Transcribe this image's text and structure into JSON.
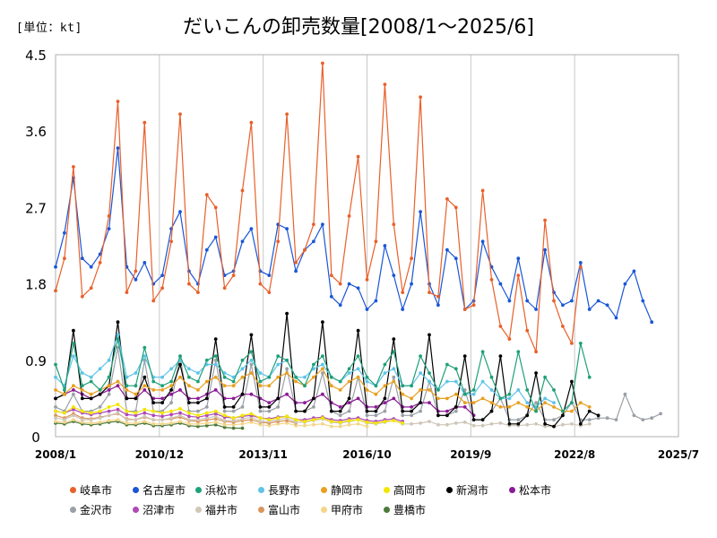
{
  "unit_label": "[単位：kt]",
  "chart_data": {
    "type": "line",
    "title": "だいこんの卸売数量[2008/1～2025/6]",
    "xlabel": "",
    "ylabel": "",
    "ylim": [
      0,
      4.5
    ],
    "yticks": [
      "0",
      "0.9",
      "1.8",
      "2.7",
      "3.6",
      "4.5"
    ],
    "xlim": [
      "2008-01",
      "2025-07"
    ],
    "xticks": [
      "2008/1",
      "2010/12",
      "2013/11",
      "2016/10",
      "2019/9",
      "2022/8",
      "2025/7"
    ],
    "grid": "vertical",
    "legend_position": "bottom",
    "sampling": "monthly, quarterly points listed; values estimated from gridlines",
    "series": [
      {
        "name": "岐阜市",
        "color": "#e8602a",
        "start": "2008-01",
        "values": [
          1.72,
          2.1,
          3.18,
          1.65,
          1.75,
          2.05,
          2.6,
          3.95,
          1.7,
          1.95,
          3.7,
          1.6,
          1.75,
          2.3,
          3.8,
          1.8,
          1.7,
          2.85,
          2.7,
          1.75,
          1.9,
          2.9,
          3.7,
          1.8,
          1.7,
          2.3,
          3.8,
          2.05,
          2.2,
          2.5,
          4.4,
          1.9,
          1.8,
          2.6,
          3.3,
          1.85,
          2.3,
          4.15,
          2.5,
          1.7,
          2.1,
          4.0,
          1.7,
          1.65,
          2.8,
          2.7,
          1.5,
          1.55,
          2.9,
          1.85,
          1.3,
          1.15,
          1.9,
          1.25,
          1.0,
          2.55,
          1.6,
          1.3,
          1.1,
          2.0
        ]
      },
      {
        "name": "名古屋市",
        "color": "#1a56d6",
        "start": "2008-01",
        "values": [
          2.0,
          2.4,
          3.05,
          2.1,
          2.0,
          2.15,
          2.45,
          3.4,
          2.0,
          1.85,
          2.05,
          1.8,
          1.9,
          2.45,
          2.65,
          1.95,
          1.8,
          2.2,
          2.35,
          1.9,
          1.95,
          2.3,
          2.45,
          1.95,
          1.9,
          2.5,
          2.45,
          1.95,
          2.2,
          2.3,
          2.5,
          1.65,
          1.55,
          1.8,
          1.75,
          1.5,
          1.6,
          2.25,
          1.9,
          1.5,
          1.8,
          2.65,
          1.8,
          1.55,
          2.2,
          2.1,
          1.5,
          1.6,
          2.3,
          2.0,
          1.8,
          1.6,
          2.1,
          1.6,
          1.5,
          2.2,
          1.7,
          1.55,
          1.6,
          2.05,
          1.5,
          1.6,
          1.55,
          1.4,
          1.8,
          1.95,
          1.6,
          1.35
        ]
      },
      {
        "name": "浜松市",
        "color": "#1fa07a",
        "start": "2008-01",
        "values": [
          0.85,
          0.55,
          1.1,
          0.6,
          0.65,
          0.55,
          0.7,
          1.15,
          0.6,
          0.6,
          1.05,
          0.65,
          0.6,
          0.65,
          0.95,
          0.7,
          0.65,
          0.9,
          0.95,
          0.7,
          0.65,
          0.9,
          1.0,
          0.65,
          0.7,
          0.95,
          0.9,
          0.7,
          0.6,
          0.85,
          0.95,
          0.7,
          0.65,
          0.8,
          0.95,
          0.7,
          0.6,
          0.85,
          1.0,
          0.6,
          0.6,
          0.95,
          0.75,
          0.55,
          0.85,
          0.8,
          0.5,
          0.55,
          1.0,
          0.7,
          0.45,
          0.5,
          1.0,
          0.55,
          0.3,
          0.7,
          0.55,
          0.3,
          0.4,
          1.1,
          0.7
        ]
      },
      {
        "name": "長野市",
        "color": "#5ec4e8",
        "start": "2008-01",
        "values": [
          0.7,
          0.6,
          0.95,
          0.75,
          0.7,
          0.8,
          0.9,
          1.2,
          0.7,
          0.75,
          0.95,
          0.7,
          0.7,
          0.8,
          0.9,
          0.8,
          0.75,
          0.85,
          0.85,
          0.75,
          0.7,
          0.8,
          0.9,
          0.75,
          0.7,
          0.85,
          0.9,
          0.7,
          0.7,
          0.8,
          0.85,
          0.7,
          0.65,
          0.75,
          0.8,
          0.65,
          0.6,
          0.75,
          0.8,
          0.6,
          0.6,
          0.75,
          0.65,
          0.55,
          0.65,
          0.65,
          0.5,
          0.5,
          0.65,
          0.55,
          0.45,
          0.45,
          0.55,
          0.4,
          0.35,
          0.45,
          0.4
        ]
      },
      {
        "name": "静岡市",
        "color": "#e8a020",
        "start": "2008-01",
        "values": [
          0.55,
          0.5,
          0.6,
          0.55,
          0.5,
          0.55,
          0.6,
          0.65,
          0.55,
          0.5,
          0.6,
          0.55,
          0.55,
          0.6,
          0.7,
          0.6,
          0.55,
          0.65,
          0.7,
          0.6,
          0.6,
          0.7,
          0.75,
          0.6,
          0.6,
          0.7,
          0.75,
          0.65,
          0.6,
          0.7,
          0.8,
          0.6,
          0.55,
          0.65,
          0.7,
          0.55,
          0.5,
          0.6,
          0.65,
          0.5,
          0.45,
          0.55,
          0.55,
          0.45,
          0.45,
          0.5,
          0.4,
          0.4,
          0.45,
          0.4,
          0.35,
          0.35,
          0.4,
          0.35,
          0.3,
          0.4,
          0.35,
          0.3,
          0.3,
          0.4,
          0.35
        ]
      },
      {
        "name": "高岡市",
        "color": "#f2e600",
        "start": "2008-01",
        "values": [
          0.3,
          0.28,
          0.35,
          0.3,
          0.28,
          0.3,
          0.35,
          0.38,
          0.3,
          0.28,
          0.32,
          0.3,
          0.28,
          0.3,
          0.33,
          0.28,
          0.25,
          0.28,
          0.3,
          0.25,
          0.22,
          0.25,
          0.27,
          0.22,
          0.2,
          0.22,
          0.24,
          0.2,
          0.18,
          0.2,
          0.22,
          0.18,
          0.17,
          0.19,
          0.2,
          0.17,
          0.16,
          0.18,
          0.19,
          0.16
        ]
      },
      {
        "name": "新潟市",
        "color": "#000000",
        "start": "2008-01",
        "values": [
          0.45,
          0.5,
          1.25,
          0.45,
          0.45,
          0.5,
          0.6,
          1.35,
          0.45,
          0.45,
          0.7,
          0.4,
          0.4,
          0.55,
          0.85,
          0.4,
          0.4,
          0.45,
          1.15,
          0.35,
          0.35,
          0.5,
          1.2,
          0.35,
          0.35,
          0.45,
          1.45,
          0.3,
          0.3,
          0.45,
          1.35,
          0.3,
          0.3,
          0.45,
          1.25,
          0.3,
          0.3,
          0.45,
          1.15,
          0.3,
          0.3,
          0.4,
          1.2,
          0.25,
          0.25,
          0.35,
          0.95,
          0.2,
          0.2,
          0.3,
          0.95,
          0.15,
          0.15,
          0.25,
          0.75,
          0.15,
          0.12,
          0.25,
          0.65,
          0.15,
          0.3,
          0.25
        ]
      },
      {
        "name": "松本市",
        "color": "#8b1a96",
        "start": "2008-01",
        "values": [
          0.45,
          0.5,
          0.55,
          0.5,
          0.45,
          0.5,
          0.55,
          0.6,
          0.45,
          0.45,
          0.55,
          0.45,
          0.45,
          0.5,
          0.55,
          0.45,
          0.45,
          0.5,
          0.55,
          0.45,
          0.45,
          0.5,
          0.5,
          0.45,
          0.4,
          0.45,
          0.5,
          0.4,
          0.4,
          0.45,
          0.5,
          0.4,
          0.35,
          0.4,
          0.45,
          0.35,
          0.35,
          0.4,
          0.45,
          0.35,
          0.35,
          0.4,
          0.4,
          0.3,
          0.3,
          0.35,
          0.35,
          0.25
        ]
      },
      {
        "name": "金沢市",
        "color": "#9aa0a6",
        "start": "2008-01",
        "values": [
          0.35,
          0.3,
          0.5,
          0.3,
          0.3,
          0.35,
          0.5,
          1.05,
          0.3,
          0.3,
          0.9,
          0.3,
          0.3,
          0.4,
          0.95,
          0.3,
          0.3,
          0.35,
          0.9,
          0.3,
          0.3,
          0.35,
          0.85,
          0.3,
          0.3,
          0.35,
          0.8,
          0.3,
          0.3,
          0.35,
          0.75,
          0.3,
          0.25,
          0.3,
          0.7,
          0.25,
          0.25,
          0.3,
          0.7,
          0.25,
          0.25,
          0.3,
          0.65,
          0.25,
          0.25,
          0.3,
          0.55,
          0.2,
          0.2,
          0.3,
          0.45,
          0.2,
          0.2,
          0.25,
          0.4,
          0.2,
          0.2,
          0.25,
          0.4,
          0.2,
          0.2,
          0.22,
          0.22,
          0.2,
          0.5,
          0.25,
          0.2,
          0.22,
          0.27
        ]
      },
      {
        "name": "沼津市",
        "color": "#b048b8",
        "start": "2008-01",
        "values": [
          0.3,
          0.28,
          0.32,
          0.28,
          0.26,
          0.28,
          0.3,
          0.32,
          0.26,
          0.25,
          0.28,
          0.25,
          0.24,
          0.26,
          0.28,
          0.24,
          0.23,
          0.25,
          0.27,
          0.23,
          0.22,
          0.24,
          0.25,
          0.22,
          0.21,
          0.23,
          0.24,
          0.2,
          0.2,
          0.22,
          0.23,
          0.2,
          0.19,
          0.21,
          0.22,
          0.19,
          0.18,
          0.2,
          0.21,
          0.18
        ]
      },
      {
        "name": "福井市",
        "color": "#cfc6b8",
        "start": "2008-01",
        "values": [
          0.22,
          0.2,
          0.25,
          0.2,
          0.2,
          0.22,
          0.25,
          0.28,
          0.2,
          0.2,
          0.24,
          0.2,
          0.2,
          0.22,
          0.25,
          0.2,
          0.2,
          0.22,
          0.24,
          0.19,
          0.19,
          0.21,
          0.23,
          0.18,
          0.18,
          0.2,
          0.22,
          0.17,
          0.17,
          0.19,
          0.21,
          0.17,
          0.16,
          0.18,
          0.2,
          0.16,
          0.15,
          0.17,
          0.19,
          0.15,
          0.15,
          0.16,
          0.18,
          0.14,
          0.14,
          0.16,
          0.17,
          0.13,
          0.13,
          0.15,
          0.16,
          0.13,
          0.13,
          0.14,
          0.15,
          0.12,
          0.12,
          0.14,
          0.15,
          0.13,
          0.15
        ]
      },
      {
        "name": "富山市",
        "color": "#d9955a",
        "start": "2008-01",
        "values": [
          0.25,
          0.22,
          0.27,
          0.22,
          0.21,
          0.23,
          0.25,
          0.27,
          0.21,
          0.2,
          0.23,
          0.2,
          0.2,
          0.21,
          0.23,
          0.19,
          0.18,
          0.2,
          0.21,
          0.18,
          0.17,
          0.19,
          0.2,
          0.17,
          0.16,
          0.18,
          0.19,
          0.16
        ]
      },
      {
        "name": "甲府市",
        "color": "#f4d58a",
        "start": "2008-01",
        "values": [
          0.18,
          0.17,
          0.2,
          0.17,
          0.16,
          0.17,
          0.19,
          0.2,
          0.16,
          0.16,
          0.18,
          0.15,
          0.15,
          0.16,
          0.18,
          0.15,
          0.15,
          0.16,
          0.17,
          0.14,
          0.14,
          0.15,
          0.17,
          0.14,
          0.13,
          0.15,
          0.16,
          0.13,
          0.13,
          0.14,
          0.15,
          0.12,
          0.12,
          0.14,
          0.15,
          0.12
        ]
      },
      {
        "name": "豊橋市",
        "color": "#4d7a38",
        "start": "2008-01",
        "values": [
          0.16,
          0.15,
          0.18,
          0.15,
          0.14,
          0.15,
          0.17,
          0.18,
          0.14,
          0.14,
          0.16,
          0.13,
          0.13,
          0.14,
          0.16,
          0.13,
          0.12,
          0.13,
          0.14,
          0.11,
          0.1,
          0.1
        ]
      }
    ]
  }
}
